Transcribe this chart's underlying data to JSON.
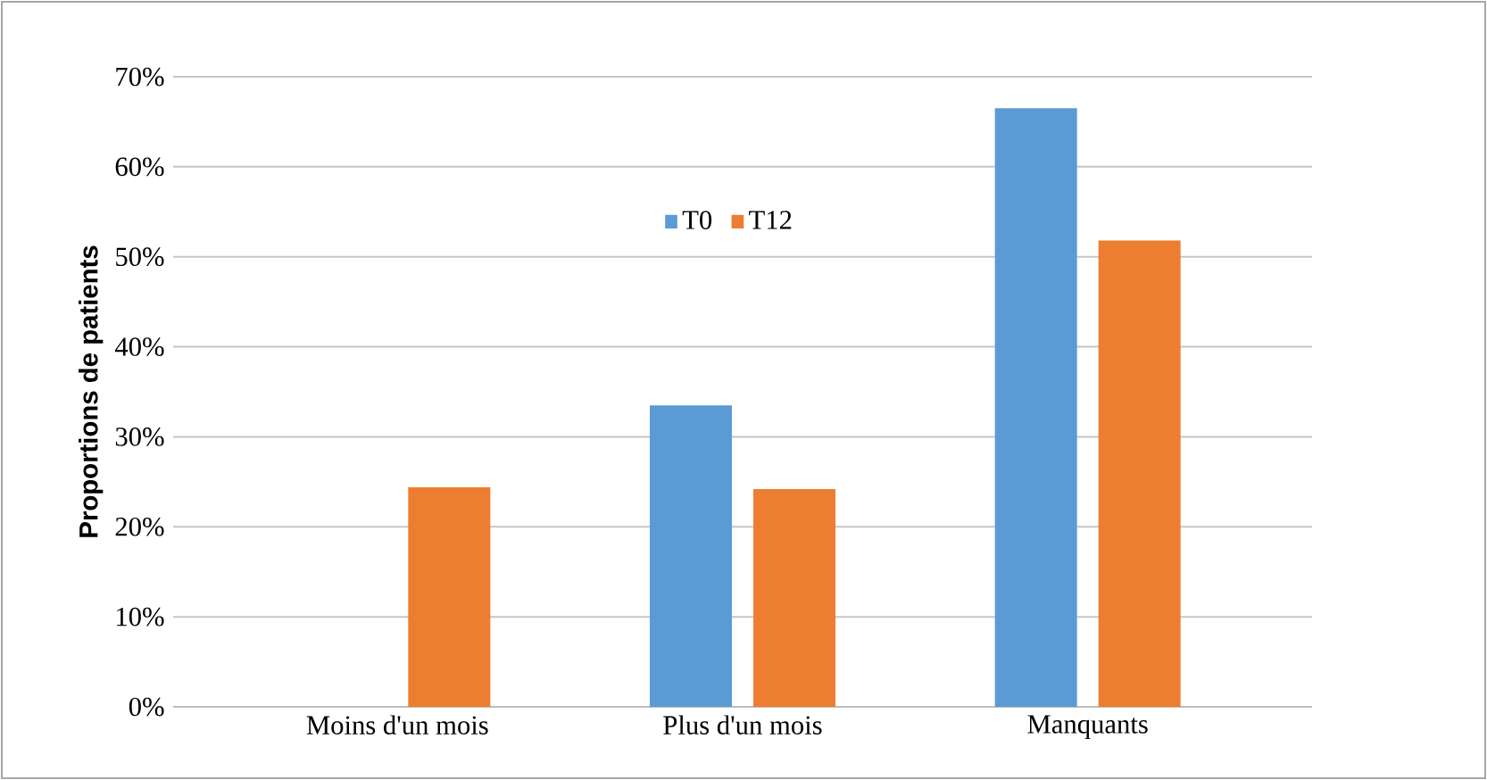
{
  "chart_data": {
    "type": "bar",
    "ylabel": "Proportions de patients",
    "categories": [
      "Moins d'un mois",
      "Plus d'un mois",
      "Manquants"
    ],
    "series": [
      {
        "name": "T0",
        "color": "#5b9bd5",
        "values": [
          0,
          33.5,
          66.5
        ]
      },
      {
        "name": "T12",
        "color": "#ed7d31",
        "values": [
          24.4,
          24.2,
          51.8
        ]
      }
    ],
    "ylim": [
      0,
      70
    ],
    "yticks": [
      {
        "value": 0,
        "label": "0%"
      },
      {
        "value": 10,
        "label": "10%"
      },
      {
        "value": 20,
        "label": "20%"
      },
      {
        "value": 30,
        "label": "30%"
      },
      {
        "value": 40,
        "label": "40%"
      },
      {
        "value": 50,
        "label": "50%"
      },
      {
        "value": 60,
        "label": "60%"
      },
      {
        "value": 70,
        "label": "70%"
      }
    ],
    "grid": "y",
    "legend": "top"
  }
}
